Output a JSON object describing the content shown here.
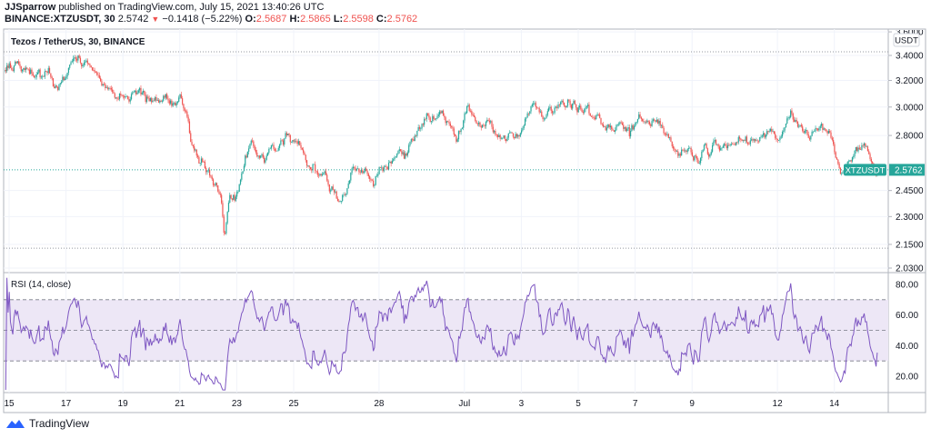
{
  "header": {
    "author": "JJSparrow",
    "published": "published on TradingView.com, July 15, 2021 13:40:26 UTC",
    "symbol": "BINANCE:XTZUSDT, 30",
    "last": "2.5742",
    "change": "−0.1418 (−5.22%)",
    "o_label": "O:",
    "o": "2.5687",
    "h_label": "H:",
    "h": "2.5865",
    "l_label": "L:",
    "l": "2.5598",
    "c_label": "C:",
    "c": "2.5762"
  },
  "brand": "TradingView",
  "colors": {
    "up": "#26a69a",
    "down": "#ef5350",
    "rsi": "#7e57c2",
    "rsi_band": "#ede7f6",
    "last_price": "#26a69a"
  },
  "chart_data": {
    "type": "candlestick",
    "title": "Tezos / TetherUS, 30, BINANCE",
    "currency": "USDT",
    "symbol_label": "XTZUSDT",
    "last_price": 2.5762,
    "last_price_label": "2.5762",
    "period_high": 3.43,
    "period_low": 2.13,
    "scale": "log",
    "ylim": [
      2.03,
      3.6
    ],
    "y_ticks": [
      {
        "v": 3.6,
        "label": "3.6000"
      },
      {
        "v": 3.4,
        "label": "3.4000"
      },
      {
        "v": 3.2,
        "label": "3.2000"
      },
      {
        "v": 3.0,
        "label": "3.0000"
      },
      {
        "v": 2.8,
        "label": "2.8000"
      },
      {
        "v": 2.45,
        "label": "2.4500"
      },
      {
        "v": 2.3,
        "label": "2.3000"
      },
      {
        "v": 2.15,
        "label": "2.1500"
      },
      {
        "v": 2.03,
        "label": "2.0300"
      }
    ],
    "x_ticks": [
      {
        "t": 0,
        "label": "15"
      },
      {
        "t": 2,
        "label": "17"
      },
      {
        "t": 4,
        "label": "19"
      },
      {
        "t": 6,
        "label": "21"
      },
      {
        "t": 8,
        "label": "23"
      },
      {
        "t": 10,
        "label": "25"
      },
      {
        "t": 13,
        "label": "28"
      },
      {
        "t": 16,
        "label": "Jul"
      },
      {
        "t": 18,
        "label": "3"
      },
      {
        "t": 20,
        "label": "5"
      },
      {
        "t": 22,
        "label": "7"
      },
      {
        "t": 24,
        "label": "9"
      },
      {
        "t": 27,
        "label": "12"
      },
      {
        "t": 29,
        "label": "14"
      }
    ],
    "x_unit": "days since Jun 15",
    "close_path": [
      [
        -0.16,
        3.27
      ],
      [
        0.16,
        3.33
      ],
      [
        0.64,
        3.24
      ],
      [
        1.12,
        3.23
      ],
      [
        1.44,
        3.26
      ],
      [
        1.66,
        3.15
      ],
      [
        1.98,
        3.19
      ],
      [
        2.4,
        3.39
      ],
      [
        2.72,
        3.35
      ],
      [
        3.19,
        3.24
      ],
      [
        3.67,
        3.07
      ],
      [
        3.99,
        3.01
      ],
      [
        4.31,
        3.1
      ],
      [
        4.63,
        3.1
      ],
      [
        4.95,
        3.04
      ],
      [
        5.27,
        3.02
      ],
      [
        5.43,
        3.05
      ],
      [
        5.75,
        3.04
      ],
      [
        6.01,
        3.04
      ],
      [
        6.23,
        2.95
      ],
      [
        6.39,
        2.78
      ],
      [
        6.55,
        2.71
      ],
      [
        6.71,
        2.65
      ],
      [
        6.96,
        2.57
      ],
      [
        7.19,
        2.52
      ],
      [
        7.44,
        2.43
      ],
      [
        7.57,
        2.18
      ],
      [
        7.76,
        2.43
      ],
      [
        7.92,
        2.4
      ],
      [
        8.05,
        2.48
      ],
      [
        8.15,
        2.6
      ],
      [
        8.31,
        2.65
      ],
      [
        8.53,
        2.73
      ],
      [
        8.79,
        2.63
      ],
      [
        9.01,
        2.63
      ],
      [
        9.27,
        2.7
      ],
      [
        9.58,
        2.76
      ],
      [
        9.84,
        2.79
      ],
      [
        10.0,
        2.82
      ],
      [
        10.16,
        2.8
      ],
      [
        10.38,
        2.69
      ],
      [
        10.61,
        2.6
      ],
      [
        10.86,
        2.57
      ],
      [
        11.12,
        2.57
      ],
      [
        11.34,
        2.49
      ],
      [
        11.57,
        2.43
      ],
      [
        11.82,
        2.45
      ],
      [
        12.08,
        2.56
      ],
      [
        12.3,
        2.55
      ],
      [
        12.56,
        2.52
      ],
      [
        12.78,
        2.48
      ],
      [
        13.04,
        2.6
      ],
      [
        13.26,
        2.58
      ],
      [
        13.48,
        2.64
      ],
      [
        13.74,
        2.7
      ],
      [
        13.96,
        2.7
      ],
      [
        14.12,
        2.78
      ],
      [
        14.31,
        2.8
      ],
      [
        14.54,
        2.89
      ],
      [
        14.86,
        2.92
      ],
      [
        15.18,
        2.96
      ],
      [
        15.5,
        2.87
      ],
      [
        15.72,
        2.76
      ],
      [
        15.97,
        2.89
      ],
      [
        16.13,
        3.0
      ],
      [
        16.36,
        2.94
      ],
      [
        16.61,
        2.87
      ],
      [
        16.93,
        2.89
      ],
      [
        17.19,
        2.8
      ],
      [
        17.41,
        2.76
      ],
      [
        17.73,
        2.81
      ],
      [
        18.05,
        2.89
      ],
      [
        18.37,
        2.95
      ],
      [
        18.69,
        2.95
      ],
      [
        19.01,
        2.98
      ],
      [
        19.33,
        3.01
      ],
      [
        19.65,
        3.04
      ],
      [
        19.87,
        3.01
      ],
      [
        20.13,
        2.96
      ],
      [
        20.38,
        2.95
      ],
      [
        20.61,
        2.86
      ],
      [
        20.93,
        2.84
      ],
      [
        21.25,
        2.87
      ],
      [
        21.57,
        2.89
      ],
      [
        21.79,
        2.81
      ],
      [
        22.04,
        2.91
      ],
      [
        22.36,
        2.9
      ],
      [
        22.75,
        2.9
      ],
      [
        23.0,
        2.84
      ],
      [
        23.26,
        2.8
      ],
      [
        23.48,
        2.7
      ],
      [
        23.71,
        2.67
      ],
      [
        23.9,
        2.7
      ],
      [
        24.12,
        2.64
      ],
      [
        24.28,
        2.6
      ],
      [
        24.44,
        2.69
      ],
      [
        24.6,
        2.61
      ],
      [
        24.76,
        2.75
      ],
      [
        25.08,
        2.76
      ],
      [
        25.4,
        2.74
      ],
      [
        25.72,
        2.77
      ],
      [
        26.04,
        2.76
      ],
      [
        26.26,
        2.8
      ],
      [
        26.58,
        2.77
      ],
      [
        26.9,
        2.82
      ],
      [
        27.22,
        2.84
      ],
      [
        27.48,
        2.91
      ],
      [
        27.73,
        2.85
      ],
      [
        27.96,
        2.8
      ],
      [
        28.27,
        2.81
      ],
      [
        28.53,
        2.85
      ],
      [
        28.75,
        2.83
      ],
      [
        28.91,
        2.78
      ],
      [
        29.07,
        2.67
      ],
      [
        29.23,
        2.57
      ],
      [
        29.39,
        2.56
      ],
      [
        29.55,
        2.63
      ],
      [
        29.71,
        2.69
      ],
      [
        29.97,
        2.72
      ],
      [
        30.19,
        2.67
      ],
      [
        30.35,
        2.61
      ],
      [
        30.51,
        2.5762
      ]
    ],
    "rsi": {
      "label": "RSI (14, close)",
      "period": 14,
      "source": "close",
      "upper": 70,
      "middle": 50,
      "lower": 30,
      "ylim": [
        11,
        85
      ],
      "y_ticks": [
        {
          "v": 80,
          "label": "80.00"
        },
        {
          "v": 60,
          "label": "60.00"
        },
        {
          "v": 40,
          "label": "40.00"
        },
        {
          "v": 20,
          "label": "20.00"
        }
      ]
    }
  }
}
